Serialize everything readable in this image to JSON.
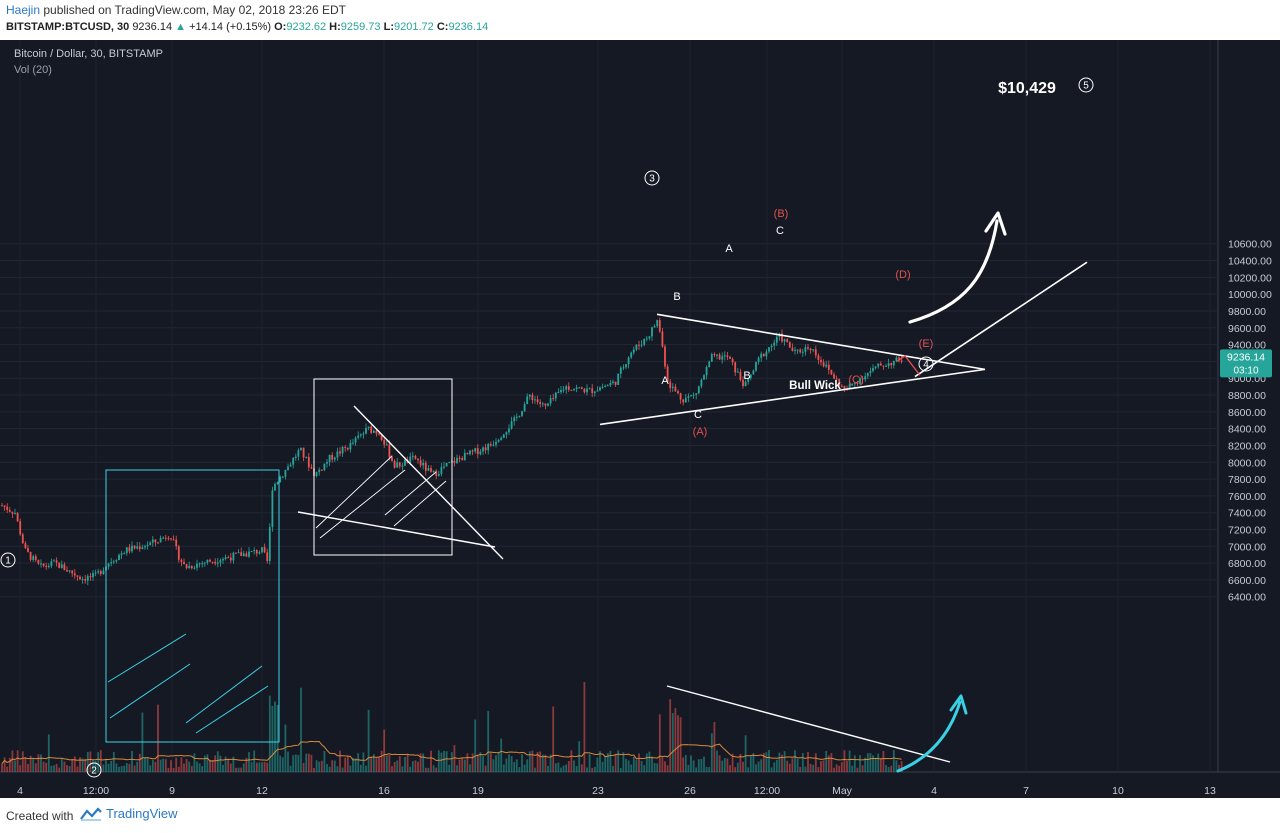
{
  "header": {
    "author": "Haejin",
    "published_text": " published on TradingView.com, May 02, 2018 23:26 EDT",
    "symbol": "BITSTAMP:BTCUSD, 30",
    "last": "9236.14",
    "change": "+14.14 (+0.15%)",
    "o_label": "O:",
    "o": "9232.62",
    "h_label": "H:",
    "h": "9259.73",
    "l_label": "L:",
    "l": "9201.72",
    "c_label": "C:",
    "c": "9236.14"
  },
  "legend": {
    "title": "Bitcoin / Dollar, 30, BITSTAMP",
    "volume": "Vol (20)"
  },
  "price_tag": {
    "price": "9236.14",
    "countdown": "03:10"
  },
  "target_label": "$10,429",
  "annotations": {
    "wave_1": "1",
    "wave_2": "2",
    "wave_3": "3",
    "wave_4": "4",
    "wave_5": "5",
    "bull_wick": "Bull Wick",
    "A1": "A",
    "B1": "B",
    "C1": "C",
    "A2": "A",
    "B2": "B",
    "C2": "C",
    "pA": "(A)",
    "pB": "(B)",
    "pC": "(C)",
    "pD": "(D)",
    "pE": "(E)"
  },
  "colors": {
    "background": "#151924",
    "up": "#26a69a",
    "down": "#ef5350",
    "drawing": "#ffffff",
    "cyan": "#3ad1e6",
    "label_red": "#e15252",
    "price_tag": "#26a69a"
  },
  "footer": {
    "created_with": "Created with",
    "brand": "TradingView"
  },
  "chart_data": {
    "type": "candlestick",
    "title": "Bitcoin / Dollar, 30, BITSTAMP",
    "y_axis": {
      "range": [
        6300,
        10700
      ],
      "ticks": [
        "10600.00",
        "10400.00",
        "10200.00",
        "10000.00",
        "9800.00",
        "9600.00",
        "9400.00",
        "9200.00",
        "9000.00",
        "8800.00",
        "8600.00",
        "8400.00",
        "8200.00",
        "8000.00",
        "7800.00",
        "7600.00",
        "7400.00",
        "7200.00",
        "7000.00",
        "6800.00",
        "6600.00",
        "6400.00"
      ]
    },
    "x_axis": {
      "ticks": [
        "4",
        "12:00",
        "9",
        "12",
        "16",
        "19",
        "23",
        "26",
        "12:00",
        "May",
        "4",
        "7",
        "10",
        "13"
      ]
    },
    "price_path": [
      [
        0,
        7500
      ],
      [
        15,
        7400
      ],
      [
        25,
        6950
      ],
      [
        40,
        6750
      ],
      [
        55,
        6800
      ],
      [
        70,
        6700
      ],
      [
        82,
        6620
      ],
      [
        95,
        6640
      ],
      [
        108,
        6800
      ],
      [
        125,
        6950
      ],
      [
        140,
        7000
      ],
      [
        155,
        7050
      ],
      [
        170,
        7150
      ],
      [
        178,
        6900
      ],
      [
        185,
        6750
      ],
      [
        200,
        6800
      ],
      [
        220,
        6850
      ],
      [
        240,
        6900
      ],
      [
        262,
        6950
      ],
      [
        268,
        6800
      ],
      [
        272,
        7700
      ],
      [
        285,
        7900
      ],
      [
        300,
        8150
      ],
      [
        315,
        7850
      ],
      [
        330,
        8050
      ],
      [
        350,
        8200
      ],
      [
        368,
        8400
      ],
      [
        380,
        8350
      ],
      [
        395,
        7950
      ],
      [
        415,
        8050
      ],
      [
        432,
        7850
      ],
      [
        445,
        7950
      ],
      [
        460,
        8050
      ],
      [
        490,
        8200
      ],
      [
        515,
        8500
      ],
      [
        530,
        8800
      ],
      [
        545,
        8650
      ],
      [
        565,
        8900
      ],
      [
        590,
        8850
      ],
      [
        615,
        8950
      ],
      [
        630,
        9300
      ],
      [
        648,
        9500
      ],
      [
        658,
        9700
      ],
      [
        668,
        8950
      ],
      [
        682,
        8750
      ],
      [
        695,
        8800
      ],
      [
        712,
        9250
      ],
      [
        728,
        9250
      ],
      [
        745,
        8900
      ],
      [
        760,
        9250
      ],
      [
        780,
        9500
      ],
      [
        795,
        9300
      ],
      [
        810,
        9380
      ],
      [
        828,
        9100
      ],
      [
        845,
        8850
      ],
      [
        860,
        9000
      ],
      [
        880,
        9150
      ],
      [
        895,
        9200
      ],
      [
        903,
        9236
      ]
    ],
    "volume": {
      "avg_volume_line": true
    },
    "drawings": {
      "triangle_top": [
        [
          657,
          9760
        ],
        [
          985,
          9100
        ]
      ],
      "triangle_bottom": [
        [
          600,
          8450
        ],
        [
          985,
          9100
        ]
      ],
      "target_line": [
        [
          915,
          9020
        ],
        [
          1087,
          10380
        ]
      ],
      "volume_trendline": "down",
      "projected_path": "up_to_10429"
    },
    "wave_labels": [
      "1",
      "2",
      "3",
      "4",
      "5"
    ],
    "legend_placement": "top-left",
    "grid": true
  }
}
